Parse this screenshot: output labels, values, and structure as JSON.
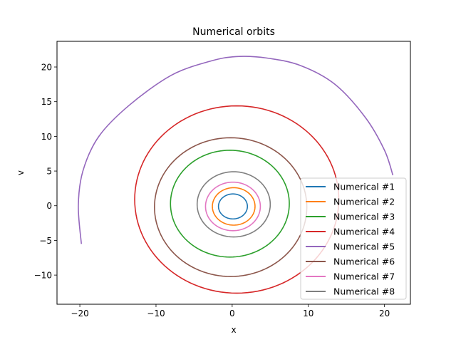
{
  "chart_data": {
    "type": "line",
    "title": "Numerical orbits",
    "xlabel": "x",
    "ylabel": "v",
    "xlim": [
      -23,
      23.4
    ],
    "ylim": [
      -14.2,
      23.7
    ],
    "xticks": [
      -20,
      -10,
      0,
      10,
      20
    ],
    "xtick_labels": [
      "−20",
      "−10",
      "0",
      "10",
      "20"
    ],
    "yticks": [
      -10,
      -5,
      0,
      5,
      10,
      15,
      20
    ],
    "ytick_labels": [
      "−10",
      "−5",
      "0",
      "5",
      "10",
      "15",
      "20"
    ],
    "grid": false,
    "legend_position": "lower-right",
    "series": [
      {
        "name": "Numerical #1",
        "color": "#1f77b4",
        "shape": "ellipse",
        "cx": 0.1,
        "cy": -0.1,
        "rx": 1.9,
        "ry": 1.8
      },
      {
        "name": "Numerical #2",
        "color": "#ff7f0e",
        "shape": "ellipse",
        "cx": 0.2,
        "cy": -0.1,
        "rx": 2.8,
        "ry": 2.7
      },
      {
        "name": "Numerical #3",
        "color": "#2ca02c",
        "shape": "ellipse",
        "cx": -0.3,
        "cy": 0.3,
        "rx": 7.8,
        "ry": 7.7
      },
      {
        "name": "Numerical #4",
        "color": "#d62728",
        "shape": "ellipse",
        "cx": 0.6,
        "cy": 0.9,
        "rx": 13.4,
        "ry": 13.5
      },
      {
        "name": "Numerical #5",
        "color": "#9467bd",
        "shape": "arc",
        "points": [
          [
            -19.8,
            -5.5
          ],
          [
            -20.2,
            0
          ],
          [
            -19.6,
            5
          ],
          [
            -17.5,
            10
          ],
          [
            -13.5,
            14.5
          ],
          [
            -8,
            18.8
          ],
          [
            -3,
            20.8
          ],
          [
            0.5,
            21.5
          ],
          [
            4.5,
            21.3
          ],
          [
            9,
            20.2
          ],
          [
            13.5,
            17.5
          ],
          [
            17.5,
            12.7
          ],
          [
            20,
            8
          ],
          [
            21.1,
            4.4
          ]
        ]
      },
      {
        "name": "Numerical #6",
        "color": "#8c564b",
        "shape": "ellipse",
        "cx": -0.2,
        "cy": -0.2,
        "rx": 10,
        "ry": 10
      },
      {
        "name": "Numerical #7",
        "color": "#e377c2",
        "shape": "ellipse",
        "cx": 0.1,
        "cy": -0.1,
        "rx": 3.6,
        "ry": 3.5
      },
      {
        "name": "Numerical #8",
        "color": "#7f7f7f",
        "shape": "ellipse",
        "cx": 0.2,
        "cy": 0.2,
        "rx": 4.8,
        "ry": 4.7
      }
    ]
  }
}
